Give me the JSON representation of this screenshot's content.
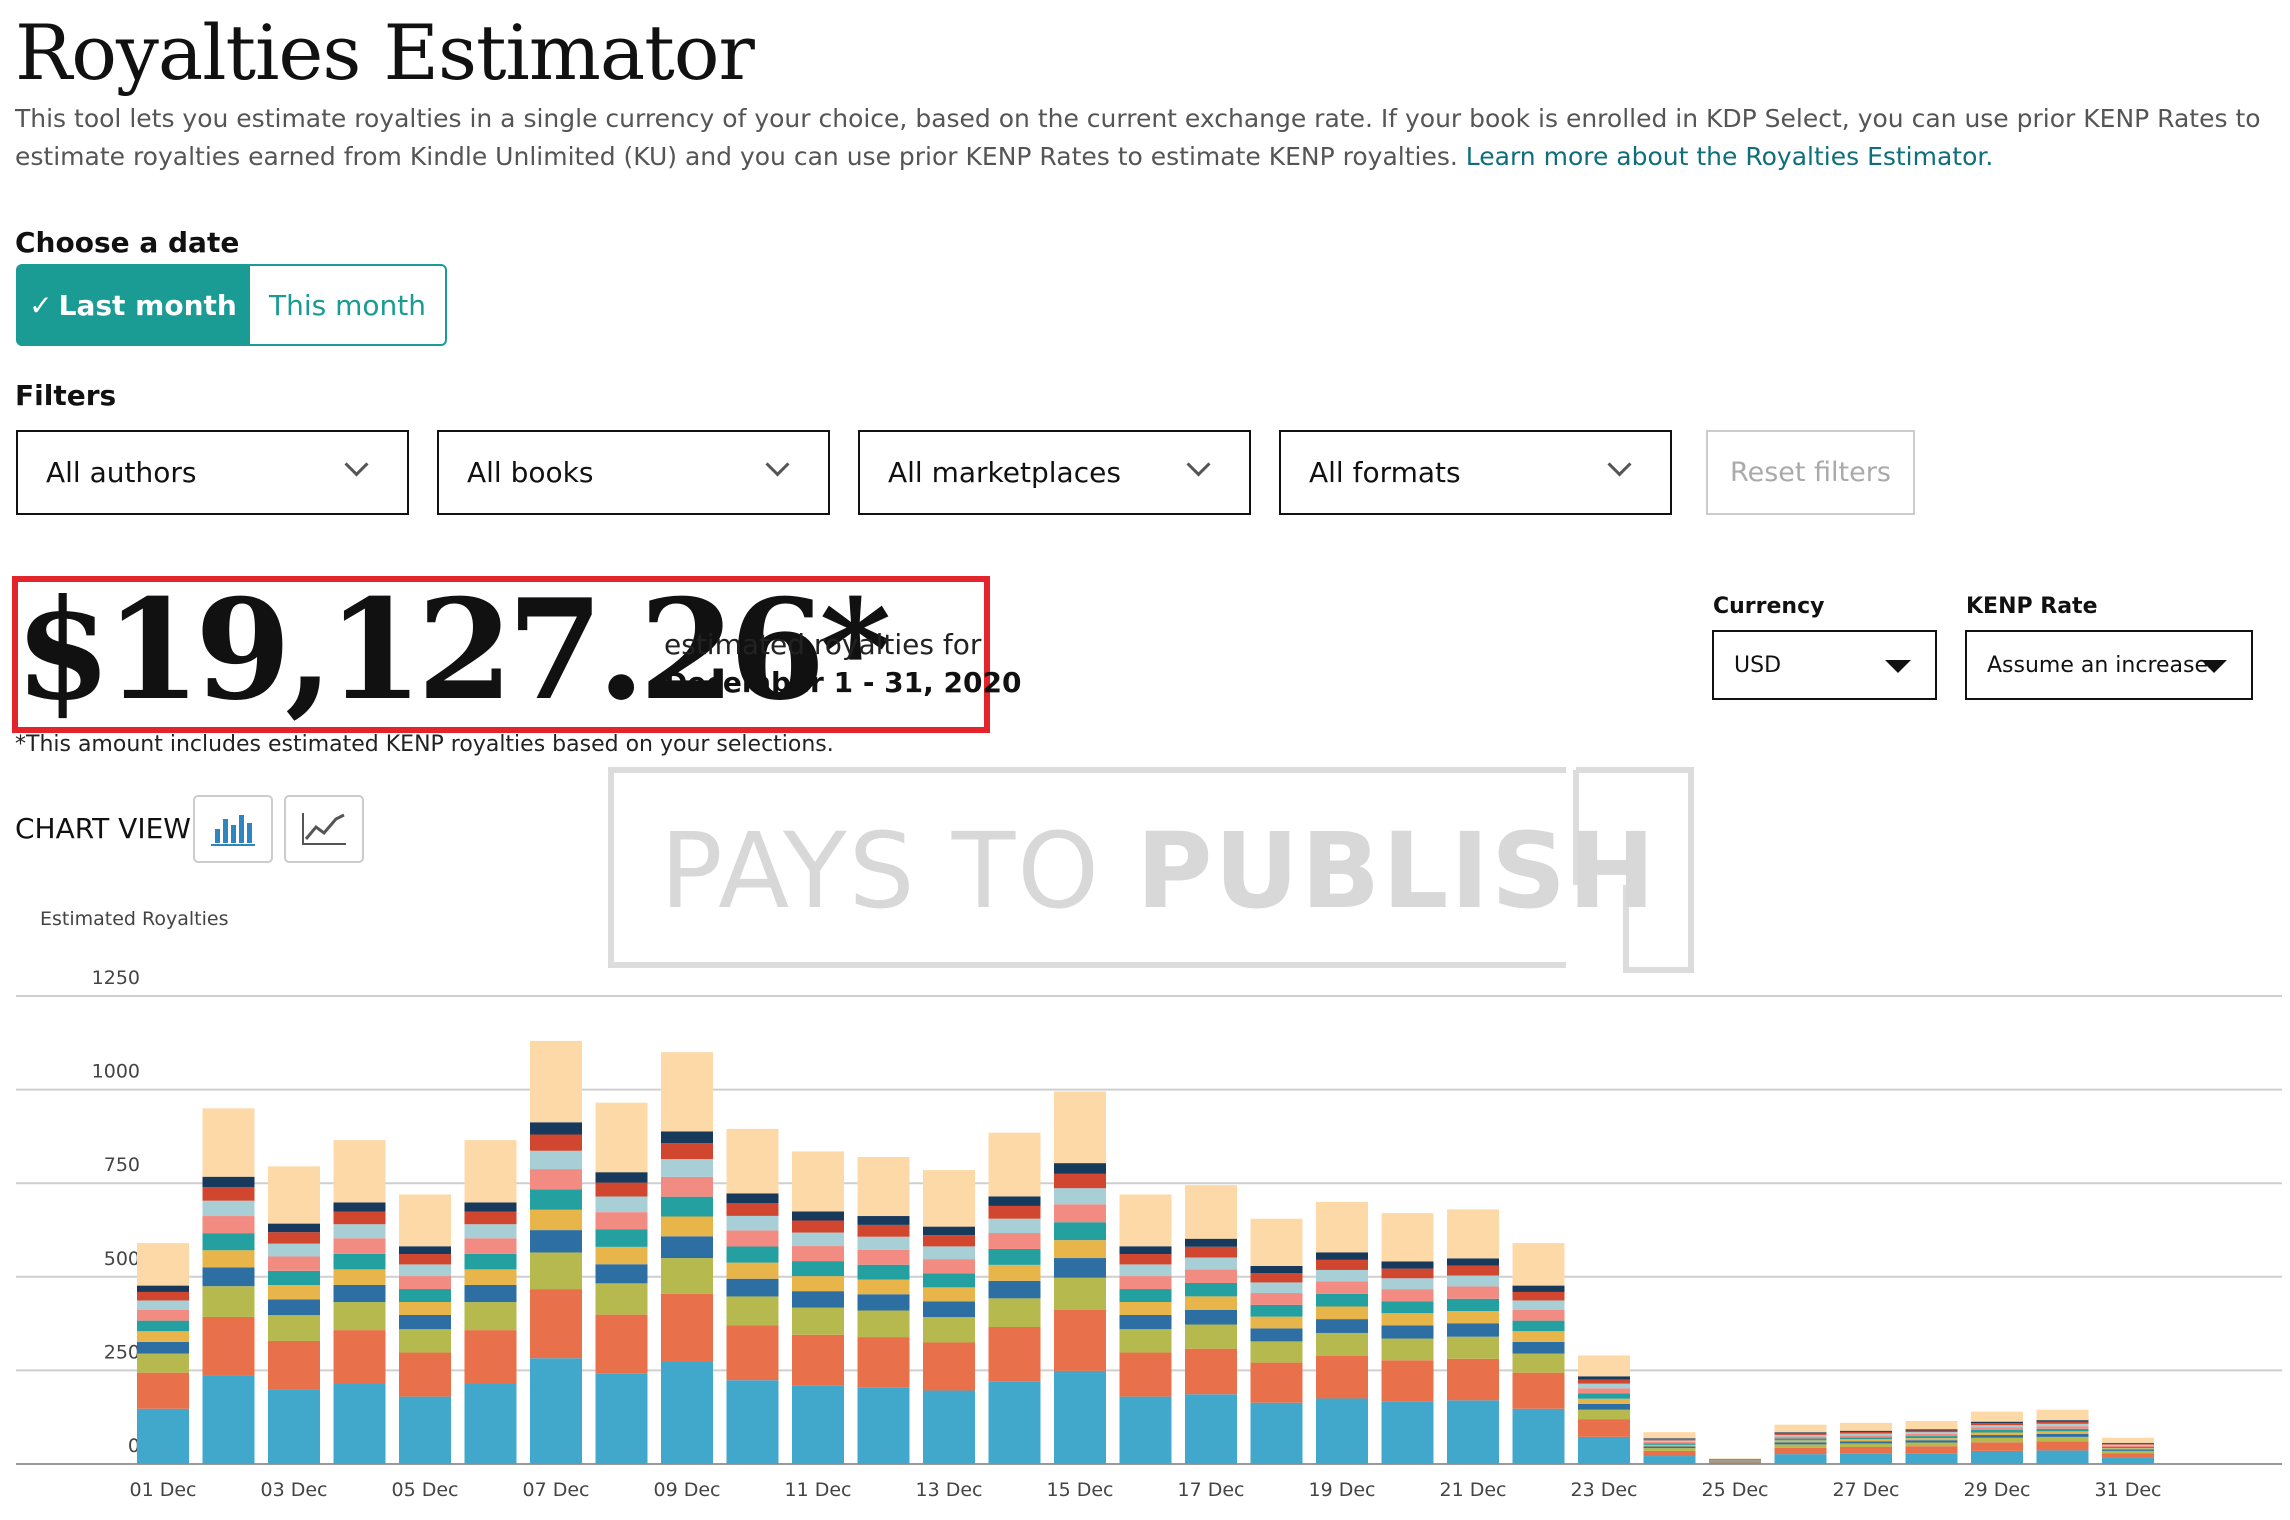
{
  "header": {
    "title": "Royalties Estimator",
    "description": "This tool lets you estimate royalties in a single currency of your choice, based on the current exchange rate. If your book is enrolled in KDP Select, you can use prior KENP Rates to estimate royalties earned from Kindle Unlimited (KU) and you can use prior KENP Rates to estimate KENP royalties.",
    "learn_more_link": "Learn more about the Royalties Estimator."
  },
  "date_choice": {
    "label": "Choose a date",
    "selected_icon": "checkmark-icon",
    "options": [
      "Last month",
      "This month"
    ],
    "selected": "Last month"
  },
  "filters": {
    "label": "Filters",
    "dropdowns": [
      "All authors",
      "All books",
      "All marketplaces",
      "All formats"
    ],
    "reset_label": "Reset filters"
  },
  "summary": {
    "amount": "$19,127.26*",
    "caption": "estimated royalties for",
    "period": "December 1 - 31, 2020",
    "footnote": "*This amount includes estimated KENP royalties based on your selections."
  },
  "currency": {
    "label": "Currency",
    "value": "USD"
  },
  "kenp_rate": {
    "label": "KENP Rate",
    "value": "Assume an increase"
  },
  "chart_view": {
    "label": "CHART VIEW",
    "options": [
      "bar-chart-icon",
      "line-chart-icon"
    ],
    "selected": "bar-chart-icon"
  },
  "watermark": {
    "light": "PAYS TO ",
    "bold": "PUBLISH"
  },
  "chart_data": {
    "type": "bar",
    "stacked": true,
    "ylabel": "Estimated Royalties",
    "ylim": [
      0,
      1250
    ],
    "yticks": [
      0,
      250,
      500,
      750,
      1000,
      1250
    ],
    "grid": true,
    "categories": [
      "01 Dec",
      "02 Dec",
      "03 Dec",
      "04 Dec",
      "05 Dec",
      "06 Dec",
      "07 Dec",
      "08 Dec",
      "09 Dec",
      "10 Dec",
      "11 Dec",
      "12 Dec",
      "13 Dec",
      "14 Dec",
      "15 Dec",
      "16 Dec",
      "17 Dec",
      "18 Dec",
      "19 Dec",
      "20 Dec",
      "21 Dec",
      "22 Dec",
      "23 Dec",
      "24 Dec",
      "25 Dec",
      "26 Dec",
      "27 Dec",
      "28 Dec",
      "29 Dec",
      "30 Dec",
      "31 Dec"
    ],
    "tick_labels": [
      "01 Dec",
      "03 Dec",
      "05 Dec",
      "07 Dec",
      "09 Dec",
      "11 Dec",
      "13 Dec",
      "15 Dec",
      "17 Dec",
      "19 Dec",
      "21 Dec",
      "23 Dec",
      "25 Dec",
      "27 Dec",
      "29 Dec",
      "31 Dec"
    ],
    "colors": [
      "#41a8cc",
      "#e8704a",
      "#b5b94e",
      "#2e6fa3",
      "#e8b54a",
      "#24a0a0",
      "#f28b82",
      "#a9cfd6",
      "#d1462f",
      "#17395c",
      "#fdd9a8"
    ],
    "totals": [
      590,
      950,
      795,
      865,
      720,
      865,
      1130,
      965,
      1100,
      895,
      835,
      820,
      785,
      885,
      995,
      720,
      745,
      655,
      700,
      670,
      680,
      590,
      290,
      85,
      15,
      105,
      110,
      115,
      140,
      145,
      70
    ]
  }
}
